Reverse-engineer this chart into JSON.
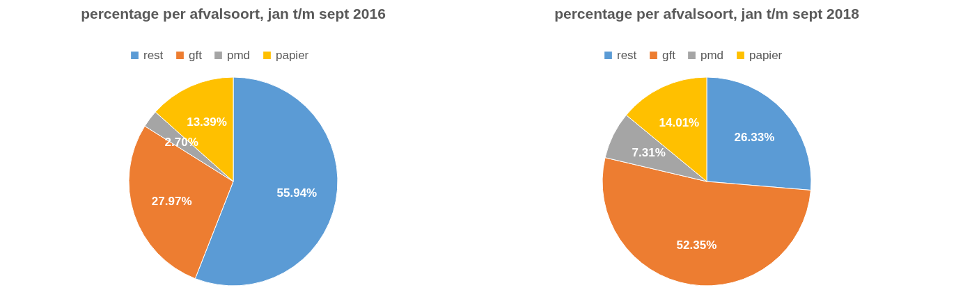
{
  "chart_data": [
    {
      "type": "pie",
      "title": "percentage per afvalsoort, jan t/m sept 2016",
      "categories": [
        "rest",
        "gft",
        "pmd",
        "papier"
      ],
      "values": [
        55.94,
        27.97,
        2.7,
        13.39
      ],
      "colors": [
        "#5b9bd5",
        "#ed7d31",
        "#a5a5a5",
        "#ffc000"
      ],
      "value_labels": [
        "55.94%",
        "27.97%",
        "2.70%",
        "13.39%"
      ],
      "legend": "top"
    },
    {
      "type": "pie",
      "title": "percentage per afvalsoort, jan t/m sept 2018",
      "categories": [
        "rest",
        "gft",
        "pmd",
        "papier"
      ],
      "values": [
        26.33,
        52.35,
        7.31,
        14.01
      ],
      "colors": [
        "#5b9bd5",
        "#ed7d31",
        "#a5a5a5",
        "#ffc000"
      ],
      "value_labels": [
        "26.33%",
        "52.35%",
        "7.31%",
        "14.01%"
      ],
      "legend": "top"
    }
  ]
}
